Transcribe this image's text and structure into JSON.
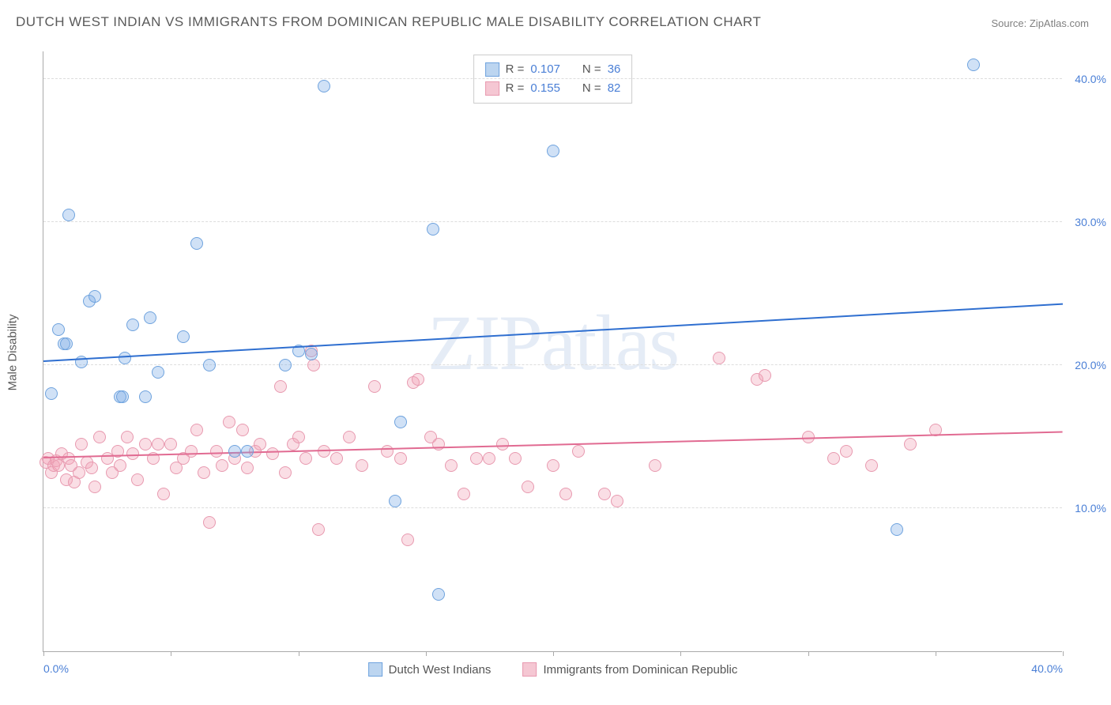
{
  "title": "DUTCH WEST INDIAN VS IMMIGRANTS FROM DOMINICAN REPUBLIC MALE DISABILITY CORRELATION CHART",
  "source": "Source: ZipAtlas.com",
  "watermark": "ZIPatlas",
  "ylabel": "Male Disability",
  "chart": {
    "type": "scatter",
    "xlim": [
      0,
      40
    ],
    "ylim": [
      0,
      42
    ],
    "yticks": [
      10,
      20,
      30,
      40
    ],
    "ytick_labels": [
      "10.0%",
      "20.0%",
      "30.0%",
      "40.0%"
    ],
    "xticks": [
      0,
      5,
      10,
      15,
      20,
      25,
      30,
      35,
      40
    ],
    "xtick_labels_shown": {
      "0": "0.0%",
      "40": "40.0%"
    },
    "grid_color": "#dddddd",
    "axis_color": "#aaaaaa",
    "background_color": "#ffffff",
    "marker_radius": 8,
    "marker_stroke_width": 1
  },
  "series": [
    {
      "name": "Dutch West Indians",
      "fill": "rgba(120,170,230,0.35)",
      "stroke": "#6fa3de",
      "swatch_fill": "#bcd5f0",
      "swatch_border": "#6fa3de",
      "trend_color": "#2f6fd0",
      "trend": {
        "x1": 0,
        "y1": 20.2,
        "x2": 40,
        "y2": 24.2
      },
      "R": "0.107",
      "N": "36",
      "points": [
        [
          0.3,
          18.0
        ],
        [
          0.6,
          22.5
        ],
        [
          0.8,
          21.5
        ],
        [
          0.9,
          21.5
        ],
        [
          1.0,
          30.5
        ],
        [
          1.5,
          20.2
        ],
        [
          1.8,
          24.5
        ],
        [
          2.0,
          24.8
        ],
        [
          3.0,
          17.8
        ],
        [
          3.1,
          17.8
        ],
        [
          3.2,
          20.5
        ],
        [
          3.5,
          22.8
        ],
        [
          4.0,
          17.8
        ],
        [
          4.2,
          23.3
        ],
        [
          4.5,
          19.5
        ],
        [
          5.5,
          22.0
        ],
        [
          6.0,
          28.5
        ],
        [
          6.5,
          20.0
        ],
        [
          7.5,
          14.0
        ],
        [
          8.0,
          14.0
        ],
        [
          9.5,
          20.0
        ],
        [
          10.0,
          21.0
        ],
        [
          10.5,
          20.8
        ],
        [
          11.0,
          39.5
        ],
        [
          13.8,
          10.5
        ],
        [
          14.0,
          16.0
        ],
        [
          15.3,
          29.5
        ],
        [
          15.5,
          4.0
        ],
        [
          20.0,
          35.0
        ],
        [
          33.5,
          8.5
        ],
        [
          36.5,
          41.0
        ]
      ]
    },
    {
      "name": "Immigrants from Dominican Republic",
      "fill": "rgba(240,160,180,0.35)",
      "stroke": "#e89ab0",
      "swatch_fill": "#f5c7d3",
      "swatch_border": "#e89ab0",
      "trend_color": "#e16b92",
      "trend": {
        "x1": 0,
        "y1": 13.5,
        "x2": 40,
        "y2": 15.3
      },
      "R": "0.155",
      "N": "82",
      "points": [
        [
          0.1,
          13.2
        ],
        [
          0.2,
          13.5
        ],
        [
          0.3,
          12.5
        ],
        [
          0.4,
          13.0
        ],
        [
          0.5,
          13.3
        ],
        [
          0.6,
          13.0
        ],
        [
          0.7,
          13.8
        ],
        [
          0.9,
          12.0
        ],
        [
          1.0,
          13.5
        ],
        [
          1.1,
          13.0
        ],
        [
          1.2,
          11.8
        ],
        [
          1.4,
          12.5
        ],
        [
          1.5,
          14.5
        ],
        [
          1.7,
          13.2
        ],
        [
          1.9,
          12.8
        ],
        [
          2.0,
          11.5
        ],
        [
          2.2,
          15.0
        ],
        [
          2.5,
          13.5
        ],
        [
          2.7,
          12.5
        ],
        [
          2.9,
          14.0
        ],
        [
          3.0,
          13.0
        ],
        [
          3.3,
          15.0
        ],
        [
          3.5,
          13.8
        ],
        [
          3.7,
          12.0
        ],
        [
          4.0,
          14.5
        ],
        [
          4.3,
          13.5
        ],
        [
          4.5,
          14.5
        ],
        [
          4.7,
          11.0
        ],
        [
          5.0,
          14.5
        ],
        [
          5.2,
          12.8
        ],
        [
          5.5,
          13.5
        ],
        [
          5.8,
          14.0
        ],
        [
          6.0,
          15.5
        ],
        [
          6.3,
          12.5
        ],
        [
          6.5,
          9.0
        ],
        [
          6.8,
          14.0
        ],
        [
          7.0,
          13.0
        ],
        [
          7.3,
          16.0
        ],
        [
          7.5,
          13.5
        ],
        [
          7.8,
          15.5
        ],
        [
          8.0,
          12.8
        ],
        [
          8.3,
          14.0
        ],
        [
          8.5,
          14.5
        ],
        [
          9.0,
          13.8
        ],
        [
          9.3,
          18.5
        ],
        [
          9.5,
          12.5
        ],
        [
          9.8,
          14.5
        ],
        [
          10.0,
          15.0
        ],
        [
          10.3,
          13.5
        ],
        [
          10.5,
          21.0
        ],
        [
          10.6,
          20.0
        ],
        [
          10.8,
          8.5
        ],
        [
          11.0,
          14.0
        ],
        [
          11.5,
          13.5
        ],
        [
          12.0,
          15.0
        ],
        [
          12.5,
          13.0
        ],
        [
          13.0,
          18.5
        ],
        [
          13.5,
          14.0
        ],
        [
          14.0,
          13.5
        ],
        [
          14.3,
          7.8
        ],
        [
          14.5,
          18.8
        ],
        [
          14.7,
          19.0
        ],
        [
          15.2,
          15.0
        ],
        [
          15.5,
          14.5
        ],
        [
          16.0,
          13.0
        ],
        [
          16.5,
          11.0
        ],
        [
          17.0,
          13.5
        ],
        [
          17.5,
          13.5
        ],
        [
          18.0,
          14.5
        ],
        [
          18.5,
          13.5
        ],
        [
          19.0,
          11.5
        ],
        [
          20.0,
          13.0
        ],
        [
          20.5,
          11.0
        ],
        [
          21.0,
          14.0
        ],
        [
          22.0,
          11.0
        ],
        [
          22.5,
          10.5
        ],
        [
          24.0,
          13.0
        ],
        [
          26.5,
          20.5
        ],
        [
          28.0,
          19.0
        ],
        [
          28.3,
          19.3
        ],
        [
          30.0,
          15.0
        ],
        [
          31.0,
          13.5
        ],
        [
          31.5,
          14.0
        ],
        [
          32.5,
          13.0
        ],
        [
          34.0,
          14.5
        ],
        [
          35.0,
          15.5
        ]
      ]
    }
  ],
  "legend_labels": {
    "R_prefix": "R = ",
    "N_prefix": "N = "
  }
}
